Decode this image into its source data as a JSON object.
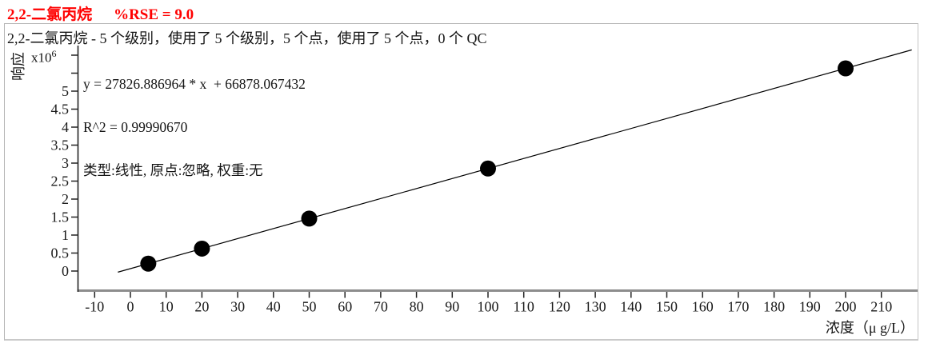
{
  "header": {
    "compound": "2,2-二氯丙烷",
    "rse": "%RSE = 9.0",
    "title_color": "#ff0000"
  },
  "chart": {
    "subtitle": "2,2-二氯丙烷 - 5 个级别，使用了 5 个级别，5 个点，使用了 5 个点，0 个 QC",
    "annotation": {
      "equation": "y = 27826.886964 * x  + 66878.067432",
      "r_squared": "R^2 = 0.99990670",
      "fit_description": "类型:线性, 原点:忽略, 权重:无"
    },
    "y_axis": {
      "title": "响应",
      "unit_base": "x10",
      "unit_exponent": "6"
    },
    "x_axis": {
      "title": "浓度（μ g/L）"
    }
  },
  "chart_data": {
    "type": "scatter",
    "title": "2,2-二氯丙烷  %RSE = 9.0",
    "xlabel": "浓度（μ g/L）",
    "ylabel": "响应 (x10^6)",
    "xlim": [
      -14.5,
      219.5
    ],
    "ylim": [
      0,
      6000000
    ],
    "grid": false,
    "x_ticks": [
      -10,
      0,
      10,
      20,
      30,
      40,
      50,
      60,
      70,
      80,
      90,
      100,
      110,
      120,
      130,
      140,
      150,
      160,
      170,
      180,
      190,
      200,
      210
    ],
    "y_ticks_millions": [
      0,
      0.5,
      1,
      1.5,
      2,
      2.5,
      3,
      3.5,
      4,
      4.5,
      5,
      5.5,
      6
    ],
    "y_tick_label_max": 5,
    "points": [
      {
        "x": 5,
        "y": 206013
      },
      {
        "x": 20,
        "y": 623416
      },
      {
        "x": 50,
        "y": 1458222
      },
      {
        "x": 100,
        "y": 2849567
      },
      {
        "x": 200,
        "y": 5632255
      }
    ],
    "fit": {
      "slope": 27826.886964,
      "intercept": 66878.067432,
      "r2": 0.9999067,
      "type": "线性",
      "origin": "忽略",
      "weight": "无",
      "line_x_range": [
        -3.5,
        218.5
      ]
    },
    "levels": 5,
    "levels_used": 5,
    "points_count": 5,
    "points_used": 5,
    "qc_count": 0,
    "rse_percent": 9.0,
    "point_color": "#000000",
    "line_color": "#000000"
  }
}
